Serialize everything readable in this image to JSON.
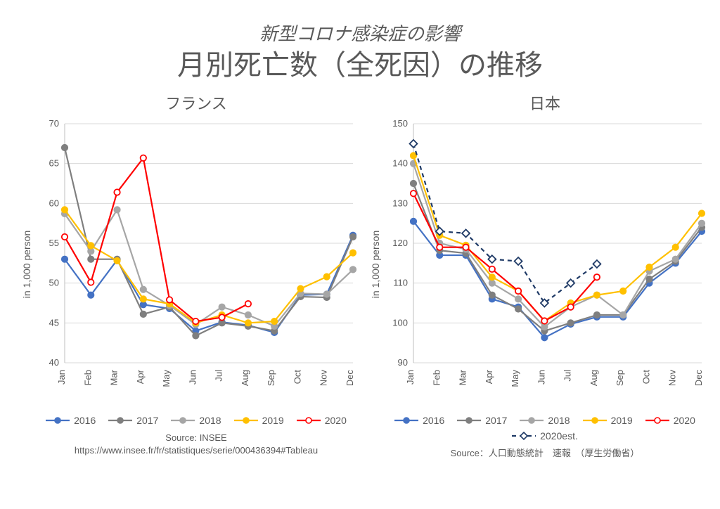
{
  "header": {
    "supertitle": "新型コロナ感染症の影響",
    "title": "月別死亡数（全死因）の推移"
  },
  "months": [
    "Jan",
    "Feb",
    "Mar",
    "Apr",
    "May",
    "Jun",
    "Jul",
    "Aug",
    "Sep",
    "Oct",
    "Nov",
    "Dec"
  ],
  "colors": {
    "2016": "#4472c4",
    "2017": "#7f7f7f",
    "2018": "#a6a6a6",
    "2019": "#ffc000",
    "2020": "#ff0000",
    "2020est": "#1f3a66",
    "grid": "#d9d9d9",
    "axis": "#bfbfbf",
    "text": "#595959",
    "bg": "#ffffff"
  },
  "chart_style": {
    "line_width": 2.2,
    "marker_radius": 4.2,
    "marker_fill": "#ffffff",
    "est_dash": "6 5",
    "est_marker": "diamond",
    "label_fontsize": 14,
    "tick_fontsize": 13,
    "panel_title_fontsize": 22
  },
  "france": {
    "title": "フランス",
    "ylabel": "in 1,000 person",
    "ylim": [
      40,
      70
    ],
    "ytick_step": 5,
    "source_lines": [
      "Source: INSEE",
      "https://www.insee.fr/fr/statistiques/serie/000436394#Tableau"
    ],
    "series": [
      {
        "key": "2016",
        "label": "2016",
        "color_key": "2016",
        "marker": "circle",
        "dash": null,
        "values": [
          53.0,
          48.5,
          52.9,
          47.3,
          46.8,
          44.0,
          45.1,
          44.7,
          43.8,
          48.5,
          48.6,
          56.0
        ]
      },
      {
        "key": "2017",
        "label": "2017",
        "color_key": "2017",
        "marker": "circle",
        "dash": null,
        "values": [
          67.0,
          53.0,
          53.0,
          46.1,
          47.0,
          43.4,
          45.0,
          44.6,
          44.0,
          48.3,
          48.2,
          55.8
        ]
      },
      {
        "key": "2018",
        "label": "2018",
        "color_key": "2018",
        "marker": "circle",
        "dash": null,
        "values": [
          58.7,
          54.0,
          59.2,
          49.2,
          47.2,
          44.8,
          47.0,
          46.0,
          44.6,
          48.7,
          48.6,
          51.7
        ]
      },
      {
        "key": "2019",
        "label": "2019",
        "color_key": "2019",
        "marker": "circle",
        "dash": null,
        "values": [
          59.2,
          54.7,
          52.8,
          48.0,
          47.4,
          45.0,
          46.0,
          45.0,
          45.2,
          49.3,
          50.8,
          53.8
        ]
      },
      {
        "key": "2020",
        "label": "2020",
        "color_key": "2020",
        "marker": "circle-open",
        "dash": null,
        "values": [
          55.8,
          50.1,
          61.4,
          65.7,
          47.9,
          45.2,
          45.7,
          47.4,
          null,
          null,
          null,
          null
        ]
      }
    ]
  },
  "japan": {
    "title": "日本",
    "ylabel": "in 1,000 person",
    "ylim": [
      90,
      150
    ],
    "ytick_step": 10,
    "source_lines": [
      "Source：人口動態統計　速報　（厚生労働省）"
    ],
    "series": [
      {
        "key": "2016",
        "label": "2016",
        "color_key": "2016",
        "marker": "circle",
        "dash": null,
        "values": [
          125.5,
          117.0,
          117.0,
          106.0,
          104.0,
          96.3,
          99.7,
          101.5,
          101.5,
          110.0,
          115.0,
          123.0
        ]
      },
      {
        "key": "2017",
        "label": "2017",
        "color_key": "2017",
        "marker": "circle",
        "dash": null,
        "values": [
          135.0,
          118.2,
          117.5,
          107.0,
          103.5,
          98.0,
          100.0,
          102.0,
          102.0,
          111.0,
          115.5,
          124.0
        ]
      },
      {
        "key": "2018",
        "label": "2018",
        "color_key": "2018",
        "marker": "circle",
        "dash": null,
        "values": [
          140.0,
          120.0,
          118.5,
          110.0,
          106.0,
          99.0,
          104.0,
          107.0,
          102.0,
          113.0,
          116.0,
          125.0
        ]
      },
      {
        "key": "2019",
        "label": "2019",
        "color_key": "2019",
        "marker": "circle",
        "dash": null,
        "values": [
          142.0,
          122.0,
          119.5,
          111.5,
          108.0,
          100.5,
          105.0,
          107.0,
          108.0,
          114.0,
          119.0,
          127.5
        ]
      },
      {
        "key": "2020",
        "label": "2020",
        "color_key": "2020",
        "marker": "circle-open",
        "dash": null,
        "values": [
          132.5,
          119.0,
          119.0,
          113.5,
          108.0,
          100.5,
          104.0,
          111.5,
          null,
          null,
          null,
          null
        ]
      },
      {
        "key": "2020est",
        "label": "2020est.",
        "color_key": "2020est",
        "marker": "diamond-open",
        "dash": "6 5",
        "values": [
          145.0,
          123.0,
          122.5,
          116.0,
          115.5,
          105.0,
          110.0,
          114.8,
          null,
          null,
          null,
          null
        ]
      }
    ]
  }
}
